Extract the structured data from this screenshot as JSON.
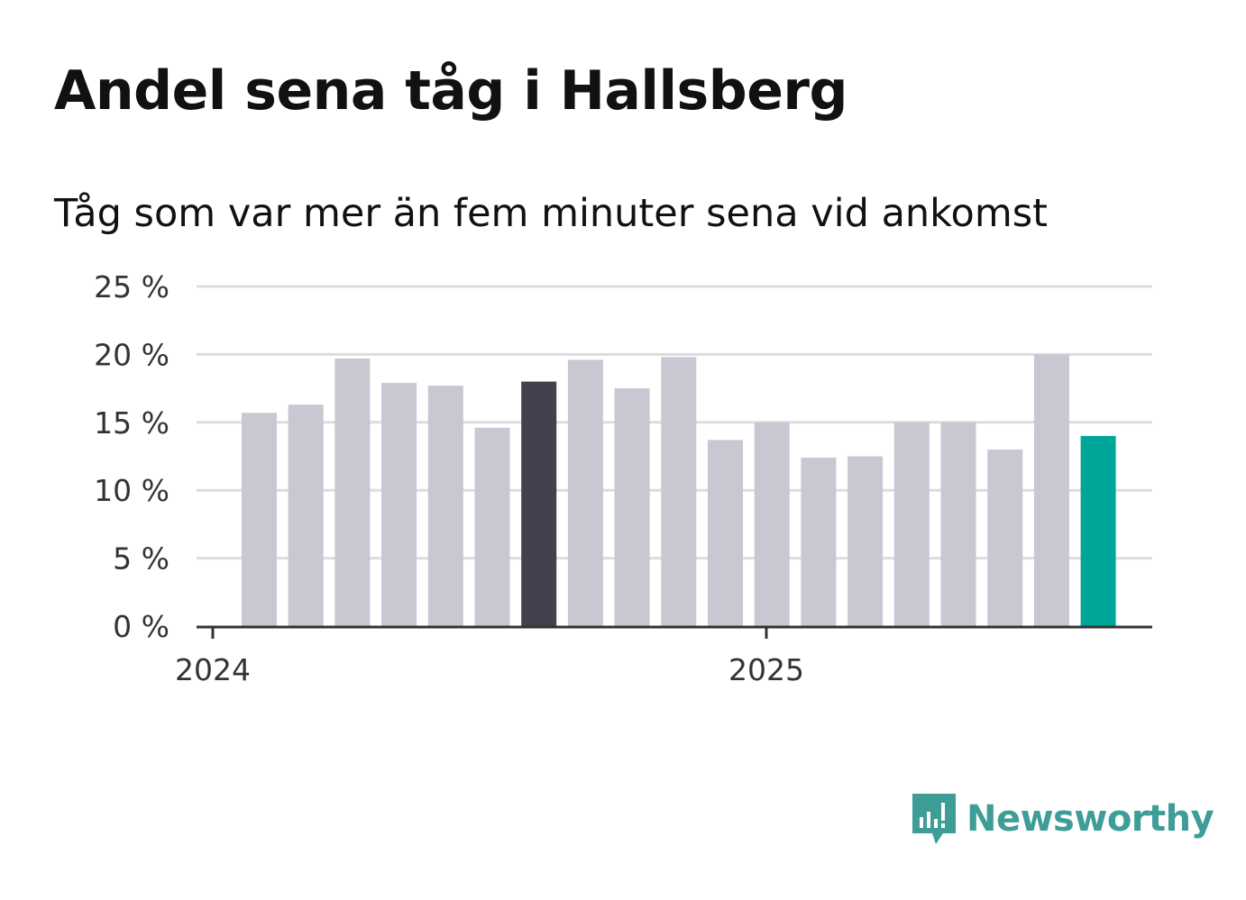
{
  "chart_data": {
    "type": "bar",
    "title": "Andel sena tåg i Hallsberg",
    "subtitle": "Tåg som var mer än fem minuter sena vid ankomst",
    "xlabel": "",
    "ylabel": "",
    "x_ticks": [
      "2024",
      "2025"
    ],
    "y_ticks": [
      "0 %",
      "5 %",
      "10 %",
      "15 %",
      "20 %",
      "25 %"
    ],
    "ylim": [
      0,
      25
    ],
    "grid": true,
    "legend": "none",
    "values": [
      15.7,
      16.3,
      19.7,
      17.9,
      17.7,
      14.6,
      18.0,
      19.6,
      17.5,
      19.8,
      13.7,
      15.0,
      12.4,
      12.5,
      15.0,
      15.0,
      13.0,
      20.0,
      14.0
    ],
    "highlight": {
      "1": 6,
      "2": 18
    },
    "colors": {
      "default": "#c8c7d2",
      "highlight_1": "#42414e",
      "highlight_2": "#00a59a",
      "grid": "#dddddd",
      "axis": "#333333"
    }
  },
  "brand": {
    "name": "Newsworthy",
    "icon": "newsworthy-logo-icon",
    "color": "#3f9d97"
  }
}
